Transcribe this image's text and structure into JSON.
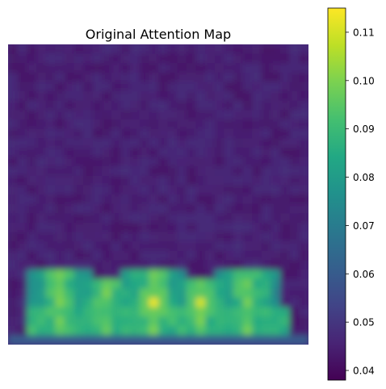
{
  "chart_data": {
    "type": "heatmap",
    "title": "Original Attention Map",
    "axes_visible": false,
    "colormap": "viridis",
    "colorbar": {
      "range": [
        0.038,
        0.115
      ],
      "ticks": [
        0.04,
        0.05,
        0.06,
        0.07,
        0.08,
        0.09,
        0.1,
        0.11
      ],
      "tick_labels": [
        "0.04",
        "0.05",
        "0.06",
        "0.07",
        "0.08",
        "0.09",
        "0.10",
        "0.11"
      ]
    },
    "grid_size": [
      32,
      32
    ],
    "values": {
      "background": 0.045,
      "upper_rows_peak": 0.052,
      "band_rows": "25-31",
      "band_peak": 0.113,
      "band_typical": 0.095,
      "hotspots": [
        {
          "col": 5,
          "row": 27,
          "value": 0.1
        },
        {
          "col": 10,
          "row": 26,
          "value": 0.1
        },
        {
          "col": 15,
          "row": 27,
          "value": 0.113
        },
        {
          "col": 20,
          "row": 27,
          "value": 0.11
        },
        {
          "col": 25,
          "row": 27,
          "value": 0.098
        }
      ]
    },
    "colors": {
      "low": "#440154",
      "mid": "#21918c",
      "high": "#fde725"
    }
  }
}
